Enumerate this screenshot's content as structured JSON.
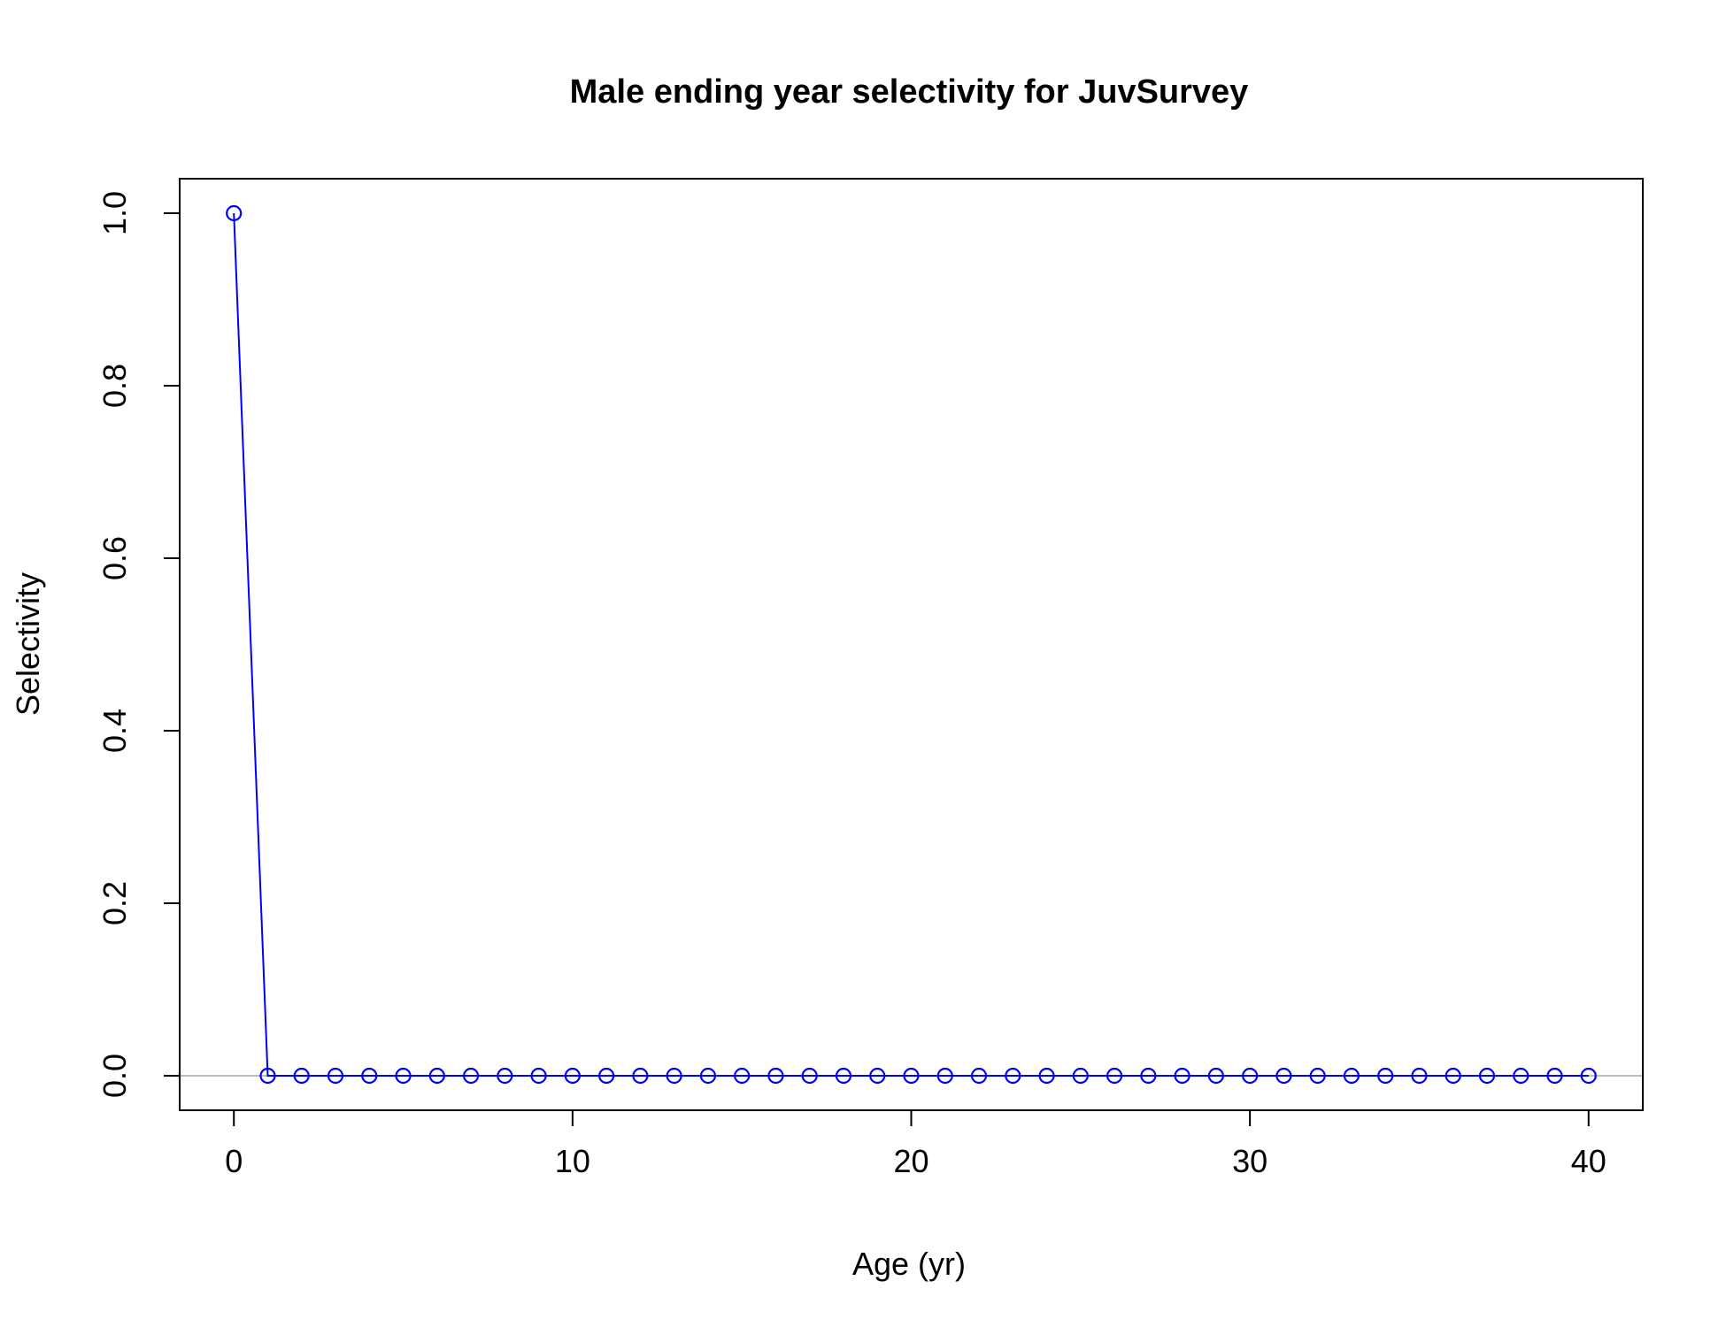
{
  "chart_data": {
    "type": "line",
    "title": "Male ending year selectivity for JuvSurvey",
    "xlabel": "Age (yr)",
    "ylabel": "Selectivity",
    "xlim": [
      -1.6,
      41.6
    ],
    "ylim": [
      -0.04,
      1.04
    ],
    "x_ticks": [
      0,
      10,
      20,
      30,
      40
    ],
    "x_tick_labels": [
      "0",
      "10",
      "20",
      "30",
      "40"
    ],
    "y_ticks": [
      0,
      0.2,
      0.4,
      0.6,
      0.8,
      1.0
    ],
    "y_tick_labels": [
      "0.0",
      "0.2",
      "0.4",
      "0.6",
      "0.8",
      "1.0"
    ],
    "reference_line_y": 0,
    "grid": false,
    "colors": {
      "series": "#0000ff",
      "reference": "#bebebe",
      "axis": "#000000"
    },
    "series": [
      {
        "marker": "open-circle",
        "x": [
          0,
          1,
          2,
          3,
          4,
          5,
          6,
          7,
          8,
          9,
          10,
          11,
          12,
          13,
          14,
          15,
          16,
          17,
          18,
          19,
          20,
          21,
          22,
          23,
          24,
          25,
          26,
          27,
          28,
          29,
          30,
          31,
          32,
          33,
          34,
          35,
          36,
          37,
          38,
          39,
          40
        ],
        "y": [
          1,
          0,
          0,
          0,
          0,
          0,
          0,
          0,
          0,
          0,
          0,
          0,
          0,
          0,
          0,
          0,
          0,
          0,
          0,
          0,
          0,
          0,
          0,
          0,
          0,
          0,
          0,
          0,
          0,
          0,
          0,
          0,
          0,
          0,
          0,
          0,
          0,
          0,
          0,
          0,
          0
        ]
      }
    ]
  }
}
